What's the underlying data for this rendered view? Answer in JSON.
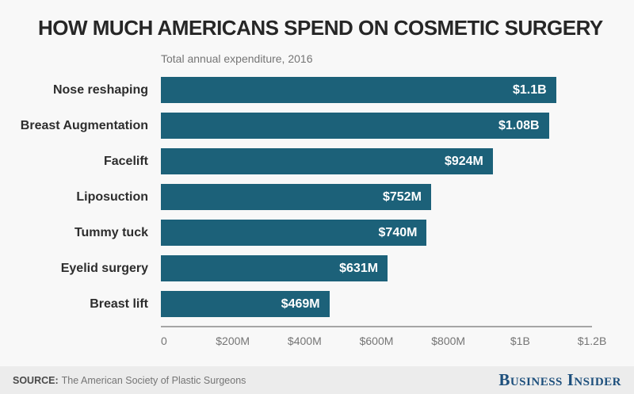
{
  "title": "HOW MUCH AMERICANS SPEND ON COSMETIC SURGERY",
  "subtitle": "Total annual expenditure, 2016",
  "chart_data": {
    "type": "bar",
    "orientation": "horizontal",
    "title": "HOW MUCH AMERICANS SPEND ON COSMETIC SURGERY",
    "subtitle": "Total annual expenditure, 2016",
    "categories": [
      "Nose reshaping",
      "Breast Augmentation",
      "Facelift",
      "Liposuction",
      "Tummy tuck",
      "Eyelid surgery",
      "Breast lift"
    ],
    "values": [
      1100,
      1080,
      924,
      752,
      740,
      631,
      469
    ],
    "value_unit": "millions USD",
    "value_labels": [
      "$1.1B",
      "$1.08B",
      "$924M",
      "$752M",
      "$740M",
      "$631M",
      "$469M"
    ],
    "xlabel": "",
    "ylabel": "",
    "xlim": [
      0,
      1200
    ],
    "x_ticks": [
      "0",
      "$200M",
      "$400M",
      "$600M",
      "$800M",
      "$1B",
      "$1.2B"
    ],
    "grid": false,
    "legend": false,
    "bar_color": "#1c6179",
    "axis_line_color": "#a5a5a5"
  },
  "footer": {
    "source_label": "SOURCE:",
    "source_text": "The American Society of Plastic Surgeons",
    "brand": "Business Insider"
  },
  "colors": {
    "background": "#f8f8f8",
    "footer_background": "#ececec",
    "title_text": "#262626",
    "muted_text": "#757575",
    "bar": "#1c6179",
    "bar_value_text": "#ffffff",
    "brand_blue": "#1d4f7c"
  }
}
